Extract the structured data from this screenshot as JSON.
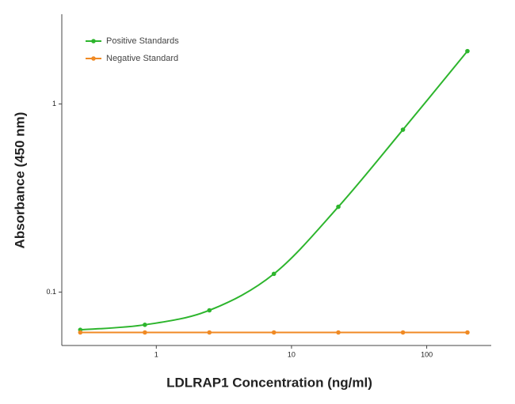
{
  "chart_data": {
    "type": "line",
    "x_label": "LDLRAP1 Concentration (ng/ml)",
    "y_label": "Absorbance (450 nm)",
    "x": [
      0.274,
      0.823,
      2.47,
      7.41,
      22.2,
      66.7,
      200
    ],
    "series": [
      {
        "name": "Positive Standards",
        "color": "#2db52d",
        "values": [
          0.063,
          0.067,
          0.08,
          0.125,
          0.284,
          0.73,
          1.91
        ]
      },
      {
        "name": "Negative Standard",
        "color": "#f08a24",
        "values": [
          0.061,
          0.061,
          0.061,
          0.061,
          0.061,
          0.061,
          0.061
        ]
      }
    ],
    "xlim": [
      0.2,
      300
    ],
    "ylim": [
      0.052,
      3
    ],
    "xticks": [
      1,
      10,
      100
    ],
    "yticks": [
      0.1,
      1
    ],
    "xscale": "log",
    "yscale": "log",
    "legend": "upper left"
  }
}
